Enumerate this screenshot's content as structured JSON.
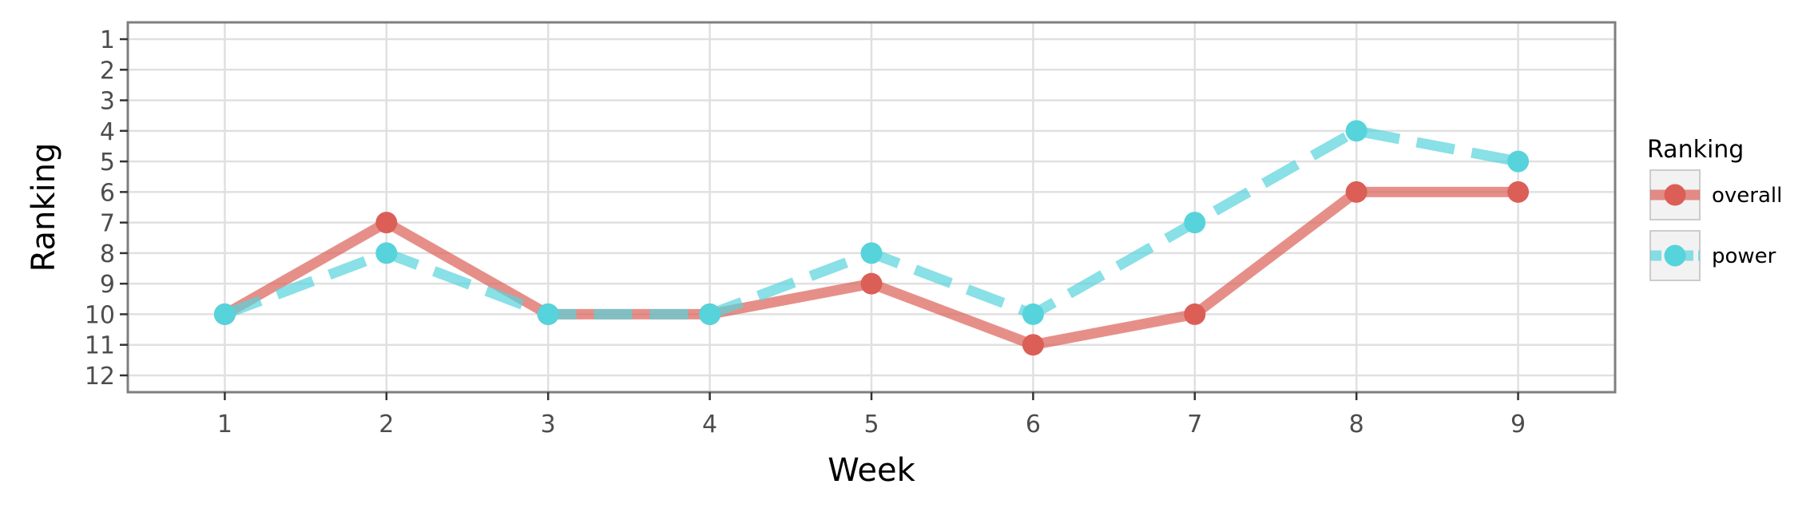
{
  "chart_data": {
    "type": "line",
    "xlabel": "Week",
    "ylabel": "Ranking",
    "x": [
      1,
      2,
      3,
      4,
      5,
      6,
      7,
      8,
      9
    ],
    "xlim": [
      0.4,
      9.6
    ],
    "ylim": [
      12.55,
      0.45
    ],
    "y_reversed": true,
    "x_ticks": [
      "1",
      "2",
      "3",
      "4",
      "5",
      "6",
      "7",
      "8",
      "9"
    ],
    "y_ticks": [
      "1",
      "2",
      "3",
      "4",
      "5",
      "6",
      "7",
      "8",
      "9",
      "10",
      "11",
      "12"
    ],
    "grid": true,
    "legend": {
      "title": "Ranking",
      "position": "right"
    },
    "series": [
      {
        "name": "overall",
        "color": "#db5f57",
        "linestyle": "solid",
        "values": [
          10,
          7,
          10,
          10,
          9,
          11,
          10,
          6,
          6
        ]
      },
      {
        "name": "power",
        "color": "#57d3db",
        "linestyle": "dashed",
        "values": [
          10,
          8,
          10,
          10,
          8,
          10,
          7,
          4,
          5
        ]
      }
    ]
  }
}
